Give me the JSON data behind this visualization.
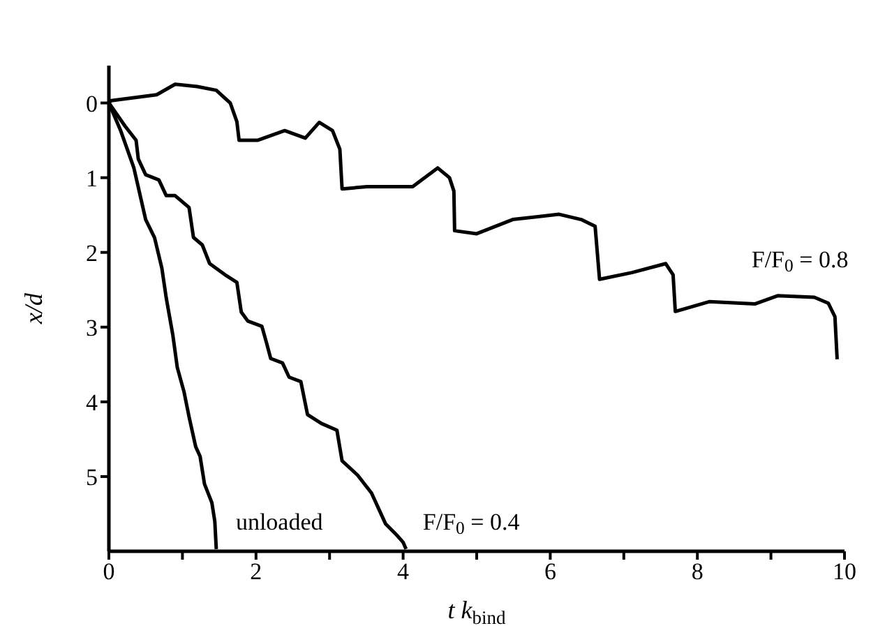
{
  "chart_data": {
    "type": "line",
    "xlabel": "t k$_{bind}$",
    "ylabel": "x/d",
    "xlim": [
      0,
      10
    ],
    "xticks": [
      0,
      {
        "value": 1,
        "label": null
      },
      2,
      {
        "value": 3,
        "label": null
      },
      4,
      {
        "value": 5,
        "label": null
      },
      6,
      {
        "value": 7,
        "label": null
      },
      8,
      {
        "value": 9,
        "label": null
      },
      10
    ],
    "ylim": [
      6,
      -0.5
    ],
    "yticks": [
      0,
      1,
      2,
      3,
      4,
      5
    ],
    "marker": "none",
    "line_style": "solid",
    "series": [
      {
        "name": "unloaded",
        "color": "#000000",
        "x": [
          0,
          0.16,
          0.34,
          0.5,
          0.62,
          0.72,
          0.78,
          0.87,
          0.93,
          1.02,
          1.09,
          1.18,
          1.24,
          1.3,
          1.4,
          1.44,
          1.46
        ],
        "values": [
          0,
          0.37,
          0.87,
          1.56,
          1.8,
          2.21,
          2.61,
          3.11,
          3.54,
          3.86,
          4.2,
          4.6,
          4.73,
          5.1,
          5.35,
          5.6,
          5.97
        ]
      },
      {
        "name": "F/F$_{0}$ = 0.4",
        "color": "#000000",
        "x": [
          0,
          0.22,
          0.37,
          0.4,
          0.5,
          0.68,
          0.78,
          0.9,
          1.09,
          1.15,
          1.27,
          1.37,
          1.58,
          1.74,
          1.8,
          1.89,
          2.08,
          2.14,
          2.2,
          2.36,
          2.45,
          2.61,
          2.7,
          2.89,
          3.1,
          3.17,
          3.38,
          3.57,
          3.76,
          3.91,
          4.0,
          4.04
        ],
        "values": [
          0,
          0.31,
          0.5,
          0.75,
          0.96,
          1.03,
          1.24,
          1.24,
          1.4,
          1.8,
          1.9,
          2.15,
          2.3,
          2.4,
          2.8,
          2.92,
          2.99,
          3.2,
          3.42,
          3.48,
          3.67,
          3.73,
          4.17,
          4.29,
          4.38,
          4.79,
          4.98,
          5.22,
          5.63,
          5.78,
          5.88,
          5.97
        ]
      },
      {
        "name": "F/F$_{0}$ = 0.8",
        "color": "#000000",
        "x": [
          0,
          0.03,
          0.65,
          0.9,
          1.2,
          1.46,
          1.65,
          1.74,
          1.77,
          2.02,
          2.39,
          2.67,
          2.86,
          3.04,
          3.14,
          3.17,
          3.51,
          4.13,
          4.47,
          4.63,
          4.69,
          4.7,
          5.0,
          5.49,
          6.12,
          6.42,
          6.61,
          6.67,
          7.11,
          7.57,
          7.67,
          7.7,
          8.16,
          8.78,
          9.09,
          9.59,
          9.78,
          9.87,
          9.9
        ],
        "values": [
          0,
          -0.03,
          -0.11,
          -0.25,
          -0.22,
          -0.17,
          0,
          0.25,
          0.5,
          0.5,
          0.37,
          0.47,
          0.26,
          0.37,
          0.62,
          1.15,
          1.12,
          1.12,
          0.87,
          1.0,
          1.18,
          1.71,
          1.75,
          1.56,
          1.49,
          1.56,
          1.65,
          2.36,
          2.27,
          2.15,
          2.3,
          2.79,
          2.66,
          2.69,
          2.58,
          2.6,
          2.68,
          2.86,
          3.43
        ]
      }
    ]
  }
}
